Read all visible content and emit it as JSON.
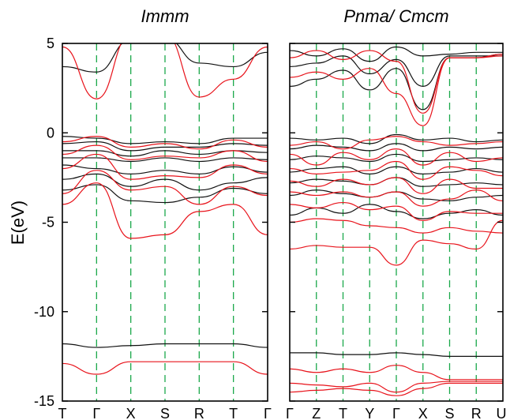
{
  "chart_data": [
    {
      "type": "line",
      "title": "Immm",
      "ylabel": "E(eV)",
      "ylim": [
        -15,
        5
      ],
      "yticks": [
        5,
        0,
        -5,
        -10,
        -15
      ],
      "kpoints": [
        "T",
        "Γ",
        "X",
        "S",
        "R",
        "T",
        "Γ"
      ],
      "colors": {
        "black": "#111111",
        "red": "#e8131b",
        "symmetry_lines": "#1aa84a"
      },
      "series": [
        {
          "color": "black",
          "values": [
            3.7,
            3.4,
            5.2,
            5.3,
            3.9,
            3.7,
            4.5
          ]
        },
        {
          "color": "black",
          "values": [
            -0.2,
            -0.3,
            -0.6,
            -0.5,
            -0.6,
            -0.3,
            -0.3
          ]
        },
        {
          "color": "black",
          "values": [
            -0.6,
            -0.5,
            -1.0,
            -0.8,
            -0.8,
            -0.6,
            -0.7
          ]
        },
        {
          "color": "black",
          "values": [
            -1.0,
            -1.0,
            -1.3,
            -1.0,
            -1.2,
            -1.0,
            -1.1
          ]
        },
        {
          "color": "black",
          "values": [
            -1.4,
            -1.4,
            -1.6,
            -1.4,
            -1.6,
            -1.4,
            -1.5
          ]
        },
        {
          "color": "black",
          "values": [
            -1.8,
            -2.0,
            -2.3,
            -2.1,
            -2.3,
            -1.9,
            -2.2
          ]
        },
        {
          "color": "black",
          "values": [
            -2.6,
            -2.3,
            -3.0,
            -2.6,
            -3.2,
            -2.8,
            -2.5
          ]
        },
        {
          "color": "black",
          "values": [
            -3.2,
            -2.9,
            -3.8,
            -3.9,
            -3.6,
            -3.1,
            -3.4
          ]
        },
        {
          "color": "black",
          "values": [
            -11.8,
            -12.0,
            -11.9,
            -11.8,
            -11.8,
            -11.8,
            -12.0
          ]
        },
        {
          "color": "red",
          "values": [
            4.8,
            1.9,
            5.5,
            5.5,
            2.0,
            3.0,
            4.8
          ]
        },
        {
          "color": "red",
          "values": [
            -0.5,
            -0.2,
            -0.8,
            -0.6,
            -0.9,
            -0.4,
            -0.8
          ]
        },
        {
          "color": "red",
          "values": [
            -1.2,
            -0.7,
            -1.5,
            -1.3,
            -1.4,
            -1.0,
            -1.6
          ]
        },
        {
          "color": "red",
          "values": [
            -2.0,
            -1.2,
            -2.6,
            -2.4,
            -2.5,
            -1.8,
            -2.3
          ]
        },
        {
          "color": "red",
          "values": [
            -3.4,
            -2.1,
            -3.2,
            -3.0,
            -4.0,
            -3.0,
            -3.5
          ]
        },
        {
          "color": "red",
          "values": [
            -4.0,
            -2.8,
            -5.9,
            -5.7,
            -4.4,
            -4.0,
            -5.7
          ]
        },
        {
          "color": "red",
          "values": [
            -12.9,
            -13.5,
            -12.8,
            -12.8,
            -12.8,
            -12.8,
            -13.5
          ]
        }
      ]
    },
    {
      "type": "line",
      "title": "Pnma/ Cmcm",
      "ylim": [
        -15,
        5
      ],
      "kpoints": [
        "Γ",
        "Z",
        "T",
        "Y",
        "Γ",
        "X",
        "S",
        "R",
        "U"
      ],
      "colors": {
        "black": "#111111",
        "red": "#e8131b",
        "symmetry_lines": "#1aa84a"
      },
      "series": [
        {
          "color": "black",
          "values": [
            4.6,
            4.3,
            4.7,
            4.0,
            4.8,
            4.3,
            4.4,
            4.5,
            4.5
          ]
        },
        {
          "color": "black",
          "values": [
            3.7,
            3.9,
            4.3,
            3.3,
            4.1,
            2.6,
            4.3,
            4.3,
            4.3
          ]
        },
        {
          "color": "black",
          "values": [
            2.6,
            3.0,
            3.5,
            2.4,
            3.6,
            1.3,
            4.2,
            4.2,
            4.4
          ]
        },
        {
          "color": "black",
          "values": [
            -0.3,
            -0.4,
            -0.3,
            -0.6,
            -0.1,
            -0.4,
            -0.3,
            -0.5,
            -0.4
          ]
        },
        {
          "color": "black",
          "values": [
            -0.9,
            -0.7,
            -0.8,
            -1.0,
            -0.6,
            -1.0,
            -0.8,
            -0.9,
            -0.8
          ]
        },
        {
          "color": "black",
          "values": [
            -1.5,
            -1.3,
            -1.4,
            -1.6,
            -1.2,
            -1.6,
            -1.5,
            -1.4,
            -1.5
          ]
        },
        {
          "color": "black",
          "values": [
            -2.2,
            -2.0,
            -1.9,
            -2.3,
            -1.9,
            -2.3,
            -2.2,
            -2.0,
            -2.2
          ]
        },
        {
          "color": "black",
          "values": [
            -2.8,
            -2.6,
            -2.7,
            -2.9,
            -2.5,
            -3.0,
            -2.9,
            -2.8,
            -2.9
          ]
        },
        {
          "color": "black",
          "values": [
            -3.5,
            -3.2,
            -3.4,
            -3.6,
            -3.3,
            -3.7,
            -3.8,
            -3.6,
            -3.5
          ]
        },
        {
          "color": "black",
          "values": [
            -4.6,
            -4.2,
            -4.5,
            -4.0,
            -4.4,
            -4.8,
            -4.5,
            -4.3,
            -4.6
          ]
        },
        {
          "color": "black",
          "values": [
            -12.3,
            -12.3,
            -12.4,
            -12.4,
            -12.3,
            -12.4,
            -12.5,
            -12.5,
            -12.5
          ]
        },
        {
          "color": "red",
          "values": [
            4.2,
            4.6,
            4.1,
            4.6,
            4.0,
            1.1,
            4.2,
            4.2,
            4.3
          ]
        },
        {
          "color": "red",
          "values": [
            3.1,
            3.4,
            3.0,
            3.6,
            2.2,
            0.4,
            4.2,
            4.2,
            4.4
          ]
        },
        {
          "color": "red",
          "values": [
            -0.7,
            -0.5,
            -0.9,
            -0.4,
            -0.2,
            -0.5,
            -0.7,
            -0.6,
            -0.5
          ]
        },
        {
          "color": "red",
          "values": [
            -1.2,
            -1.8,
            -1.1,
            -1.5,
            -0.9,
            -1.8,
            -1.1,
            -1.6,
            -1.4
          ]
        },
        {
          "color": "red",
          "values": [
            -2.0,
            -2.3,
            -2.2,
            -2.1,
            -1.6,
            -2.6,
            -1.9,
            -2.1,
            -2.4
          ]
        },
        {
          "color": "red",
          "values": [
            -2.7,
            -3.0,
            -2.6,
            -2.9,
            -2.5,
            -3.4,
            -2.6,
            -3.1,
            -3.1
          ]
        },
        {
          "color": "red",
          "values": [
            -3.3,
            -3.5,
            -3.3,
            -3.6,
            -3.3,
            -4.1,
            -3.7,
            -3.2,
            -3.8
          ]
        },
        {
          "color": "red",
          "values": [
            -4.0,
            -4.2,
            -3.9,
            -4.3,
            -4.1,
            -4.9,
            -4.4,
            -4.5,
            -4.5
          ]
        },
        {
          "color": "red",
          "values": [
            -5.0,
            -4.8,
            -4.9,
            -5.2,
            -5.3,
            -5.6,
            -5.3,
            -5.5,
            -5.6
          ]
        },
        {
          "color": "red",
          "values": [
            -6.5,
            -6.3,
            -6.4,
            -6.4,
            -7.4,
            -6.0,
            -6.2,
            -6.5,
            -4.9
          ]
        },
        {
          "color": "red",
          "values": [
            -13.2,
            -13.4,
            -13.2,
            -13.4,
            -13.0,
            -13.4,
            -13.8,
            -13.8,
            -13.8
          ]
        },
        {
          "color": "red",
          "values": [
            -14.0,
            -14.1,
            -14.2,
            -14.0,
            -14.5,
            -14.0,
            -13.9,
            -13.9,
            -13.9
          ]
        },
        {
          "color": "red",
          "values": [
            -14.5,
            -14.4,
            -14.3,
            -14.4,
            -14.7,
            -14.3,
            -14.0,
            -14.0,
            -14.0
          ]
        }
      ]
    }
  ]
}
